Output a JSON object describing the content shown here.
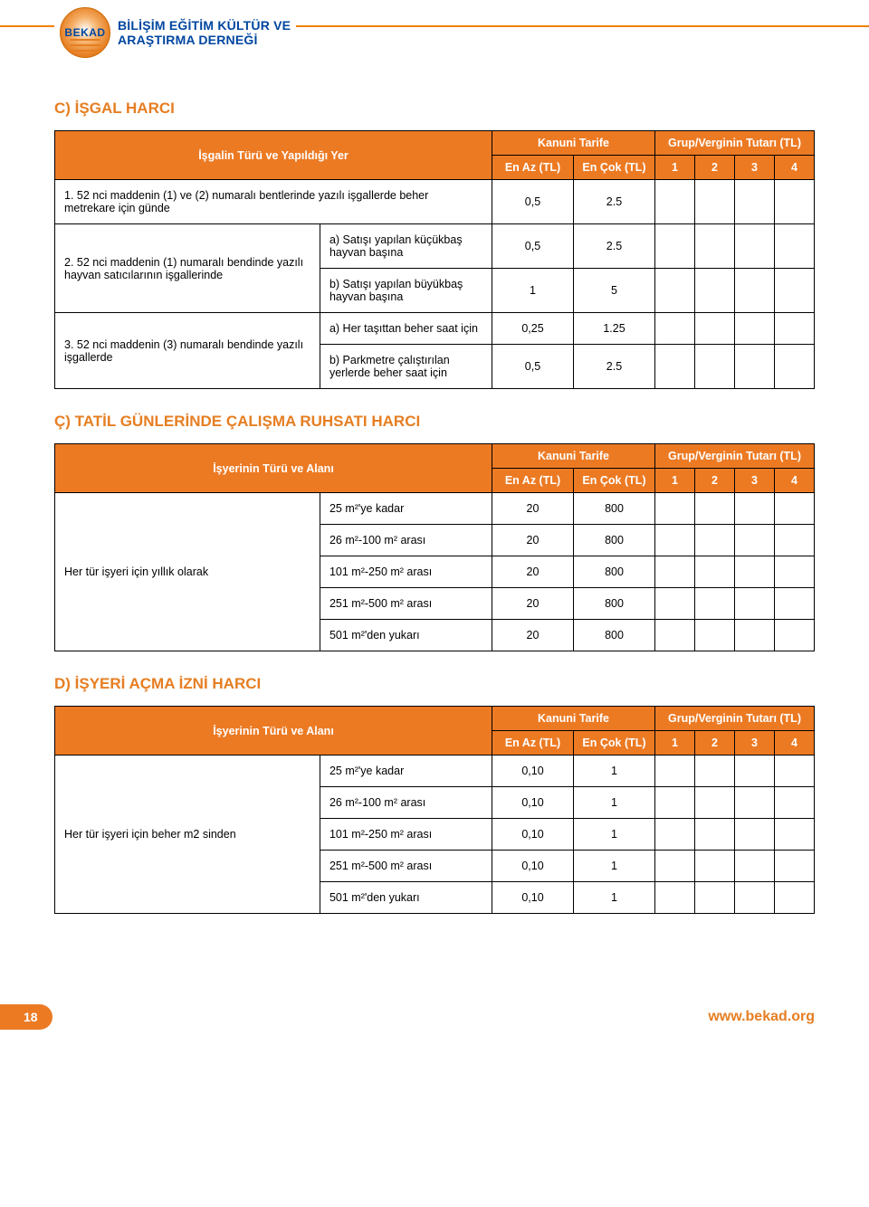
{
  "header": {
    "logo_text": "BEKAD",
    "org_line1": "BİLİŞİM EĞİTİM KÜLTÜR VE",
    "org_line2": "ARAŞTIRMA DERNEĞİ"
  },
  "section_c": {
    "title": "C) İŞGAL HARCI",
    "row_header_left": "İşgalin Türü ve Yapıldığı Yer",
    "kanuni_tarife": "Kanuni Tarife",
    "grup_vergi": "Grup/Verginin Tutarı (TL)",
    "en_az": "En Az (TL)",
    "en_cok": "En Çok (TL)",
    "g1": "1",
    "g2": "2",
    "g3": "3",
    "g4": "4",
    "r1": {
      "label": "1. 52 nci maddenin (1) ve (2) numaralı bentlerinde yazılı işgallerde beher metrekare için günde",
      "az": "0,5",
      "cok": "2.5"
    },
    "r2": {
      "label": "2. 52 nci maddenin (1) numaralı bendinde yazılı hayvan satıcılarının işgallerinde",
      "a_label": "a) Satışı yapılan küçükbaş hayvan başına",
      "a_az": "0,5",
      "a_cok": "2.5",
      "b_label": "b) Satışı yapılan büyükbaş hayvan başına",
      "b_az": "1",
      "b_cok": "5"
    },
    "r3": {
      "label": "3. 52 nci maddenin (3) numaralı bendinde yazılı işgallerde",
      "a_label": "a) Her taşıttan beher saat için",
      "a_az": "0,25",
      "a_cok": "1.25",
      "b_label": "b) Parkmetre çalıştırılan yerlerde beher saat için",
      "b_az": "0,5",
      "b_cok": "2.5"
    }
  },
  "section_cc": {
    "title": "Ç) TATİL GÜNLERİNDE ÇALIŞMA RUHSATI HARCI",
    "row_header_left": "İşyerinin Türü ve Alanı",
    "kanuni_tarife": "Kanuni Tarife",
    "grup_vergi": "Grup/Verginin Tutarı (TL)",
    "en_az": "En Az (TL)",
    "en_cok": "En Çok (TL)",
    "g1": "1",
    "g2": "2",
    "g3": "3",
    "g4": "4",
    "main_label": "Her tür işyeri için yıllık olarak",
    "rows": [
      {
        "sub": "25 m²'ye kadar",
        "az": "20",
        "cok": "800"
      },
      {
        "sub": "26 m²-100 m² arası",
        "az": "20",
        "cok": "800"
      },
      {
        "sub": "101 m²-250 m² arası",
        "az": "20",
        "cok": "800"
      },
      {
        "sub": "251 m²-500 m² arası",
        "az": "20",
        "cok": "800"
      },
      {
        "sub": "501 m²'den yukarı",
        "az": "20",
        "cok": "800"
      }
    ]
  },
  "section_d": {
    "title": "D) İŞYERİ AÇMA İZNİ HARCI",
    "row_header_left": "İşyerinin Türü ve Alanı",
    "kanuni_tarife": "Kanuni Tarife",
    "grup_vergi": "Grup/Verginin Tutarı (TL)",
    "en_az": "En Az (TL)",
    "en_cok": "En Çok (TL)",
    "g1": "1",
    "g2": "2",
    "g3": "3",
    "g4": "4",
    "main_label": "Her tür işyeri için beher m2 sinden",
    "rows": [
      {
        "sub": "25 m²'ye kadar",
        "az": "0,10",
        "cok": "1"
      },
      {
        "sub": "26 m²-100 m²  arası",
        "az": "0,10",
        "cok": "1"
      },
      {
        "sub": "101 m²-250 m² arası",
        "az": "0,10",
        "cok": "1"
      },
      {
        "sub": "251 m²-500 m² arası",
        "az": "0,10",
        "cok": "1"
      },
      {
        "sub": "501 m²'den yukarı",
        "az": "0,10",
        "cok": "1"
      }
    ]
  },
  "footer": {
    "page_number": "18",
    "site": "www.bekad.org"
  },
  "colors": {
    "accent": "#ec7a23",
    "heading": "#e67e22",
    "text": "#000000",
    "header_blue": "#0046a0",
    "border": "#000000",
    "background": "#ffffff"
  }
}
